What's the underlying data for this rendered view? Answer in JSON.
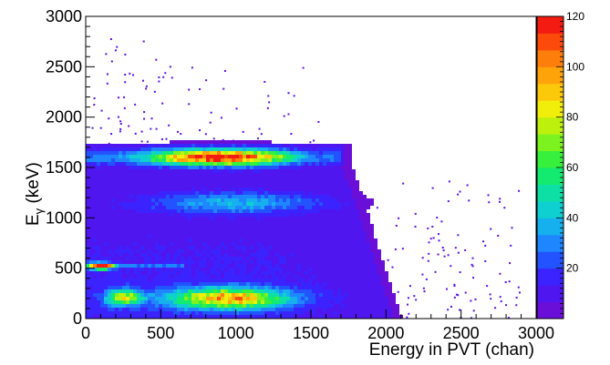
{
  "chart_data": {
    "type": "heatmap",
    "title": "",
    "xlabel": "Energy in PVT (chan)",
    "ylabel_main": "E",
    "ylabel_sub": "γ",
    "ylabel_unit": " (keV)",
    "xlim": [
      0,
      3000
    ],
    "ylim": [
      0,
      3000
    ],
    "x_ticks": [
      "0",
      "500",
      "1000",
      "1500",
      "2000",
      "2500",
      "3000"
    ],
    "y_ticks": [
      "0",
      "500",
      "1000",
      "1500",
      "2000",
      "2500",
      "3000"
    ],
    "colorbar": {
      "range": [
        0,
        120
      ],
      "ticks": [
        "20",
        "40",
        "60",
        "80",
        "100",
        "120"
      ],
      "palette": [
        "#6a0fd8",
        "#4f16ef",
        "#3a23ff",
        "#2352ff",
        "#1e86ff",
        "#16b0ee",
        "#0fd0d0",
        "#0de0a4",
        "#12ea70",
        "#36f03c",
        "#7cf21e",
        "#bef00e",
        "#f2ee0c",
        "#fcc80a",
        "#fea40a",
        "#fd7e0a",
        "#fb4a0a",
        "#f41b12"
      ]
    },
    "features": [
      {
        "kind": "band",
        "x_range": [
          0,
          1700
        ],
        "y_range": [
          1450,
          1700
        ],
        "peak_x": 900,
        "peak_y": 1600,
        "max_count": 120
      },
      {
        "kind": "blob",
        "x_center": 100,
        "y_center": 520,
        "max_count": 115
      },
      {
        "kind": "blob",
        "x_center": 950,
        "y_center": 200,
        "max_count": 85
      },
      {
        "kind": "blob",
        "x_center": 250,
        "y_center": 210,
        "max_count": 65
      },
      {
        "kind": "faint_band",
        "x_range": [
          600,
          1500
        ],
        "y_range": [
          1050,
          1250
        ],
        "max_count": 30
      },
      {
        "kind": "edge",
        "x_at_y0": 2050,
        "x_at_y1500": 1720
      }
    ]
  }
}
